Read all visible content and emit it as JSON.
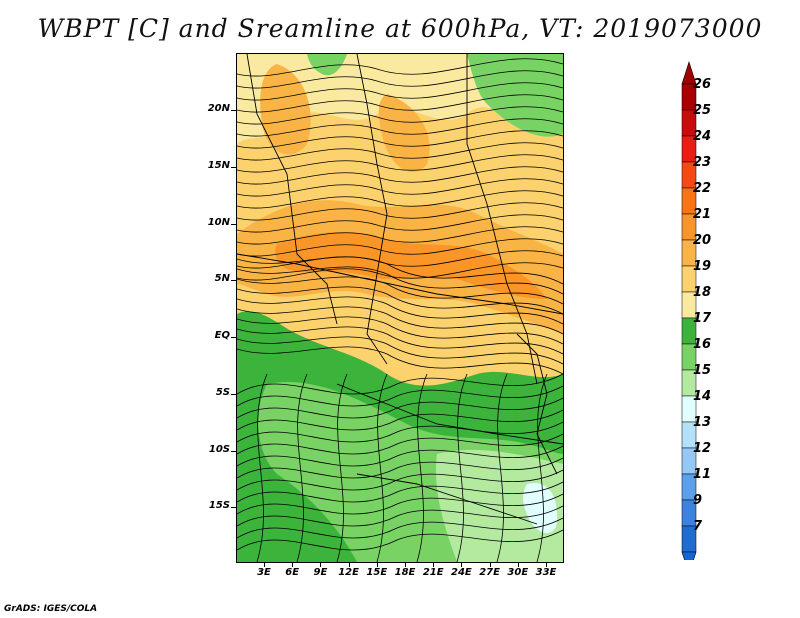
{
  "title": "WBPT [C] and Sreamline at 600hPa, VT: 2019073000",
  "credit": "GrADS: IGES/COLA",
  "lat_labels": [
    "20N",
    "15N",
    "10N",
    "5N",
    "EQ",
    "5S",
    "10S",
    "15S"
  ],
  "lon_labels": [
    "3E",
    "6E",
    "9E",
    "12E",
    "15E",
    "18E",
    "21E",
    "24E",
    "27E",
    "30E",
    "33E"
  ],
  "colorbar": {
    "labels": [
      "26",
      "25",
      "24",
      "23",
      "22",
      "21",
      "20",
      "19",
      "18",
      "17",
      "16",
      "15",
      "14",
      "13",
      "12",
      "11",
      "9",
      "7"
    ],
    "colors": [
      "#a80000",
      "#c80c0c",
      "#e81e14",
      "#f54a14",
      "#fa7314",
      "#fa9628",
      "#fab446",
      "#fcd26e",
      "#faeaa0",
      "#3cb43c",
      "#78d264",
      "#b4eaa0",
      "#e1ffff",
      "#b4e1fa",
      "#96c8f5",
      "#5aa0eb",
      "#3c82e1",
      "#1e6ed2"
    ],
    "over_color": "#a00000",
    "under_color": "#1464d2"
  },
  "map_colors": {
    "warm_low": "#faeaa0",
    "warm_mid": "#fcd26e",
    "warm_high": "#fab446",
    "hot": "#fa9628",
    "green_dark": "#3cb43c",
    "green_mid": "#78d264",
    "green_light": "#b4eaa0",
    "cyan": "#e1ffff",
    "stream": "#000000"
  }
}
